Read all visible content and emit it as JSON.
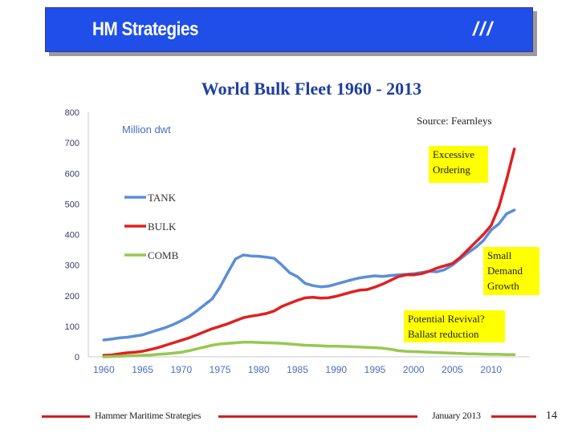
{
  "header": {
    "title": "HM Strategies",
    "mark": "///",
    "background": "#1f4fe8"
  },
  "chart_data": {
    "type": "line",
    "title": "World Bulk Fleet 1960 - 2013",
    "ylabel": "Million dwt",
    "xlabel": "",
    "xlim": [
      1958,
      2015
    ],
    "ylim": [
      0,
      800
    ],
    "x_ticks": [
      1960,
      1965,
      1970,
      1975,
      1980,
      1985,
      1990,
      1995,
      2000,
      2005,
      2010
    ],
    "y_ticks": [
      0,
      100,
      200,
      300,
      400,
      500,
      600,
      700,
      800
    ],
    "legend_position": "left",
    "source_note": "Source: Fearnleys",
    "series": [
      {
        "name": "TANK",
        "color": "#5b8ed8",
        "points": [
          [
            1960,
            55
          ],
          [
            1961,
            58
          ],
          [
            1962,
            62
          ],
          [
            1963,
            64
          ],
          [
            1964,
            68
          ],
          [
            1965,
            72
          ],
          [
            1966,
            80
          ],
          [
            1967,
            88
          ],
          [
            1968,
            96
          ],
          [
            1969,
            106
          ],
          [
            1970,
            118
          ],
          [
            1971,
            132
          ],
          [
            1972,
            150
          ],
          [
            1973,
            170
          ],
          [
            1974,
            190
          ],
          [
            1975,
            228
          ],
          [
            1976,
            275
          ],
          [
            1977,
            320
          ],
          [
            1978,
            333
          ],
          [
            1979,
            330
          ],
          [
            1980,
            329
          ],
          [
            1981,
            326
          ],
          [
            1982,
            322
          ],
          [
            1983,
            300
          ],
          [
            1984,
            275
          ],
          [
            1985,
            262
          ],
          [
            1986,
            240
          ],
          [
            1987,
            233
          ],
          [
            1988,
            229
          ],
          [
            1989,
            231
          ],
          [
            1990,
            238
          ],
          [
            1991,
            245
          ],
          [
            1992,
            252
          ],
          [
            1993,
            258
          ],
          [
            1994,
            262
          ],
          [
            1995,
            265
          ],
          [
            1996,
            263
          ],
          [
            1997,
            266
          ],
          [
            1998,
            268
          ],
          [
            1999,
            270
          ],
          [
            2000,
            272
          ],
          [
            2001,
            276
          ],
          [
            2002,
            280
          ],
          [
            2003,
            278
          ],
          [
            2004,
            285
          ],
          [
            2005,
            300
          ],
          [
            2006,
            320
          ],
          [
            2007,
            340
          ],
          [
            2008,
            358
          ],
          [
            2009,
            380
          ],
          [
            2010,
            415
          ],
          [
            2011,
            435
          ],
          [
            2012,
            468
          ],
          [
            2013,
            480
          ]
        ]
      },
      {
        "name": "BULK",
        "color": "#e02020",
        "points": [
          [
            1960,
            5
          ],
          [
            1961,
            6
          ],
          [
            1962,
            10
          ],
          [
            1963,
            13
          ],
          [
            1964,
            15
          ],
          [
            1965,
            18
          ],
          [
            1966,
            24
          ],
          [
            1967,
            30
          ],
          [
            1968,
            38
          ],
          [
            1969,
            46
          ],
          [
            1970,
            54
          ],
          [
            1971,
            62
          ],
          [
            1972,
            72
          ],
          [
            1973,
            82
          ],
          [
            1974,
            92
          ],
          [
            1975,
            100
          ],
          [
            1976,
            108
          ],
          [
            1977,
            118
          ],
          [
            1978,
            128
          ],
          [
            1979,
            133
          ],
          [
            1980,
            137
          ],
          [
            1981,
            142
          ],
          [
            1982,
            150
          ],
          [
            1983,
            165
          ],
          [
            1984,
            175
          ],
          [
            1985,
            185
          ],
          [
            1986,
            193
          ],
          [
            1987,
            195
          ],
          [
            1988,
            192
          ],
          [
            1989,
            193
          ],
          [
            1990,
            198
          ],
          [
            1991,
            205
          ],
          [
            1992,
            212
          ],
          [
            1993,
            218
          ],
          [
            1994,
            220
          ],
          [
            1995,
            228
          ],
          [
            1996,
            238
          ],
          [
            1997,
            250
          ],
          [
            1998,
            262
          ],
          [
            1999,
            268
          ],
          [
            2000,
            268
          ],
          [
            2001,
            272
          ],
          [
            2002,
            280
          ],
          [
            2003,
            290
          ],
          [
            2004,
            298
          ],
          [
            2005,
            305
          ],
          [
            2006,
            325
          ],
          [
            2007,
            350
          ],
          [
            2008,
            375
          ],
          [
            2009,
            400
          ],
          [
            2010,
            430
          ],
          [
            2011,
            490
          ],
          [
            2012,
            580
          ],
          [
            2013,
            680
          ]
        ]
      },
      {
        "name": "COMB",
        "color": "#96c850",
        "points": [
          [
            1960,
            0
          ],
          [
            1961,
            1
          ],
          [
            1962,
            2
          ],
          [
            1963,
            3
          ],
          [
            1964,
            4
          ],
          [
            1965,
            5
          ],
          [
            1966,
            6
          ],
          [
            1967,
            8
          ],
          [
            1968,
            10
          ],
          [
            1969,
            12
          ],
          [
            1970,
            15
          ],
          [
            1971,
            20
          ],
          [
            1972,
            26
          ],
          [
            1973,
            32
          ],
          [
            1974,
            38
          ],
          [
            1975,
            42
          ],
          [
            1976,
            44
          ],
          [
            1977,
            46
          ],
          [
            1978,
            48
          ],
          [
            1979,
            48
          ],
          [
            1980,
            47
          ],
          [
            1981,
            46
          ],
          [
            1982,
            45
          ],
          [
            1983,
            44
          ],
          [
            1984,
            42
          ],
          [
            1985,
            40
          ],
          [
            1986,
            38
          ],
          [
            1987,
            37
          ],
          [
            1988,
            36
          ],
          [
            1989,
            35
          ],
          [
            1990,
            35
          ],
          [
            1991,
            34
          ],
          [
            1992,
            33
          ],
          [
            1993,
            32
          ],
          [
            1994,
            31
          ],
          [
            1995,
            30
          ],
          [
            1996,
            28
          ],
          [
            1997,
            25
          ],
          [
            1998,
            20
          ],
          [
            1999,
            18
          ],
          [
            2000,
            17
          ],
          [
            2001,
            16
          ],
          [
            2002,
            15
          ],
          [
            2003,
            14
          ],
          [
            2004,
            13
          ],
          [
            2005,
            12
          ],
          [
            2006,
            11
          ],
          [
            2007,
            10
          ],
          [
            2008,
            10
          ],
          [
            2009,
            9
          ],
          [
            2010,
            8
          ],
          [
            2011,
            8
          ],
          [
            2012,
            7
          ],
          [
            2013,
            7
          ]
        ]
      }
    ],
    "annotations": [
      {
        "name": "excessive-ordering",
        "lines": [
          "Excessive",
          "Ordering"
        ]
      },
      {
        "name": "small-demand-growth",
        "lines": [
          "Small",
          "Demand",
          "Growth"
        ]
      },
      {
        "name": "potential-revival",
        "lines": [
          "Potential Revival?",
          "Ballast reduction"
        ]
      }
    ]
  },
  "footer": {
    "company": "Hammer Maritime Strategies",
    "date": "January 2013",
    "page": "14",
    "line_color": "#cc2222"
  }
}
